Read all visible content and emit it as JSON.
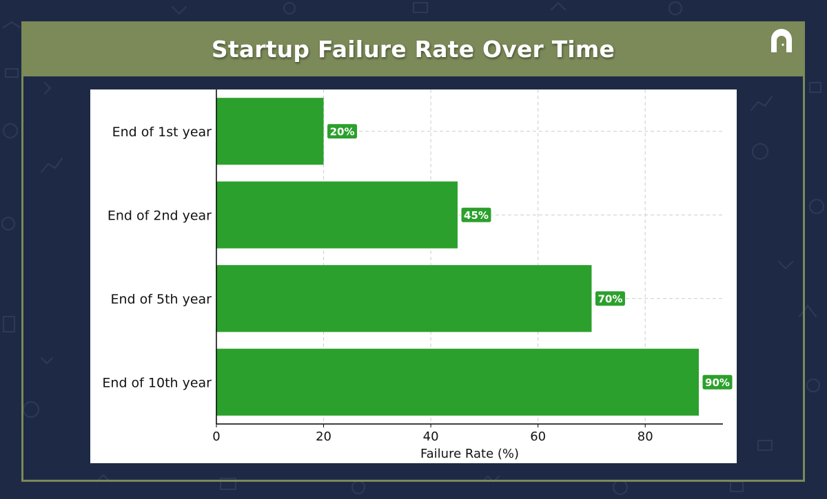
{
  "header": {
    "title": "Startup Failure Rate Over Time",
    "logo_icon": "door-arch-icon"
  },
  "colors": {
    "background": "#1e2a45",
    "title_bar": "#7b8a58",
    "bar": "#2ca02c",
    "label_box": "#2ca02c"
  },
  "chart_data": {
    "type": "bar",
    "orientation": "horizontal",
    "title": "Startup Failure Rate Over Time",
    "categories": [
      "End of 1st year",
      "End of 2nd year",
      "End of 5th year",
      "End of 10th year"
    ],
    "values": [
      20,
      45,
      70,
      90
    ],
    "data_labels": [
      "20%",
      "45%",
      "70%",
      "90%"
    ],
    "xlabel": "Failure Rate (%)",
    "ylabel": "",
    "xlim": [
      0,
      94.5
    ],
    "xticks": [
      0,
      20,
      40,
      60,
      80
    ],
    "grid": true,
    "legend": "none"
  }
}
